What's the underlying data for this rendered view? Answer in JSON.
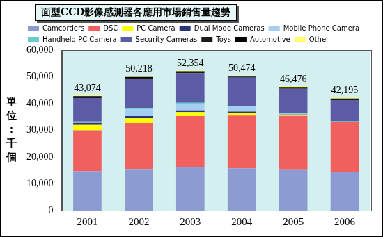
{
  "chart_data": {
    "type": "bar",
    "title": "面型CCD影像感測器各應用市場銷售量趨勢",
    "y_label": "單位：千個",
    "categories": [
      "2001",
      "2002",
      "2003",
      "2004",
      "2005",
      "2006"
    ],
    "stacked": true,
    "legend": "top",
    "grid": false,
    "ylim": [
      0,
      60000
    ],
    "yticks": [
      0,
      {
        "value": 10000,
        "label": "10,000"
      },
      {
        "value": 20000,
        "label": "20,000"
      },
      {
        "value": 30000,
        "label": "30,000"
      },
      {
        "value": 40000,
        "label": "40,000"
      },
      {
        "value": 50000,
        "label": "50,000"
      },
      {
        "value": 60000,
        "label": "60,000"
      }
    ],
    "series": [
      {
        "name": "Camcorders",
        "color": "#8c9bd2",
        "values": [
          14700,
          15500,
          16300,
          15800,
          15400,
          14300
        ]
      },
      {
        "name": "DSC",
        "color": "#f0605e",
        "values": [
          15300,
          17200,
          19000,
          19700,
          20000,
          18700
        ]
      },
      {
        "name": "PC Camera",
        "color": "#ffff00",
        "values": [
          2000,
          1800,
          1500,
          1000,
          300,
          200
        ]
      },
      {
        "name": "Dual Mode Cameras",
        "color": "#2b3576",
        "values": [
          800,
          800,
          700,
          500,
          200,
          100
        ]
      },
      {
        "name": "Mobile Phone Camera",
        "color": "#a6cdf2",
        "values": [
          300,
          2500,
          2500,
          2000,
          300,
          100
        ]
      },
      {
        "name": "Handheld PC Camera",
        "color": "#66cccc",
        "values": [
          200,
          300,
          300,
          200,
          100,
          100
        ]
      },
      {
        "name": "Security Cameras",
        "color": "#5c5ca6",
        "values": [
          8800,
          11000,
          11000,
          10500,
          9200,
          7800
        ]
      },
      {
        "name": "Toys",
        "color": "#1a1a1a",
        "values": [
          474,
          518,
          454,
          374,
          476,
          395
        ]
      },
      {
        "name": "Automotive",
        "color": "#000000",
        "values": [
          200,
          300,
          300,
          200,
          200,
          200
        ]
      },
      {
        "name": "Other",
        "color": "#ffff66",
        "values": [
          300,
          300,
          300,
          200,
          300,
          300
        ]
      }
    ],
    "totals": {
      "values": [
        43074,
        50218,
        52354,
        50474,
        46476,
        42195
      ],
      "value_labels": [
        "43,074",
        "50,218",
        "52,354",
        "50,474",
        "46,476",
        "42,195"
      ]
    }
  }
}
